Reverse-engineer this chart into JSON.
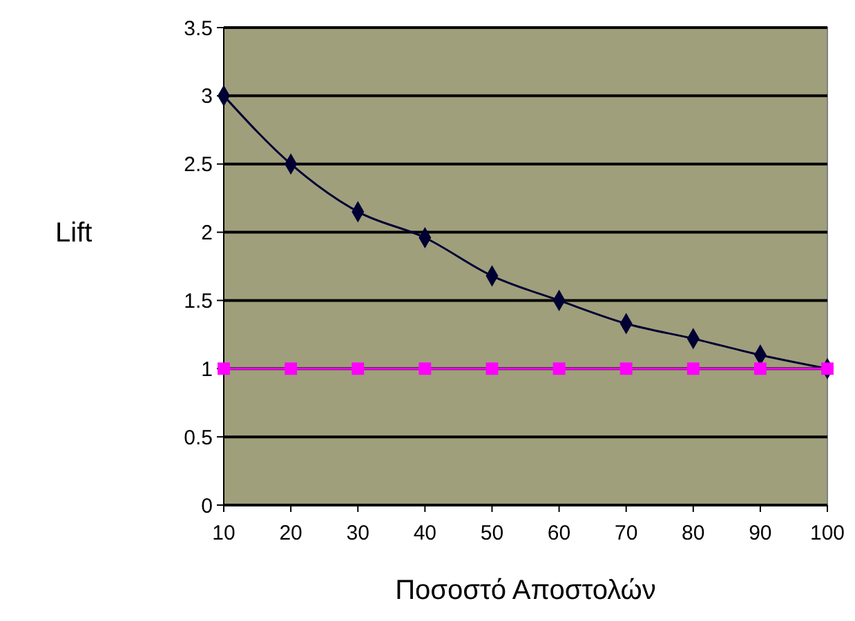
{
  "chart_data": {
    "type": "line",
    "xlabel": "Ποσοστό Αποστολών",
    "ylabel": "Lift",
    "x": [
      10,
      20,
      30,
      40,
      50,
      60,
      70,
      80,
      90,
      100
    ],
    "xlim": [
      10,
      100
    ],
    "xticks": [
      10,
      20,
      30,
      40,
      50,
      60,
      70,
      80,
      90,
      100
    ],
    "ylim": [
      0,
      3.5
    ],
    "yticks": [
      0,
      0.5,
      1,
      1.5,
      2,
      2.5,
      3,
      3.5
    ],
    "grid": "y",
    "series": [
      {
        "color": "#000033",
        "marker": "diamond",
        "values": [
          3,
          2.5,
          2.15,
          1.96,
          1.68,
          1.5,
          1.33,
          1.22,
          1.1,
          1.0
        ]
      },
      {
        "color": "#ff00ff",
        "marker": "square",
        "values": [
          1,
          1,
          1,
          1,
          1,
          1,
          1,
          1,
          1,
          1
        ]
      }
    ]
  }
}
